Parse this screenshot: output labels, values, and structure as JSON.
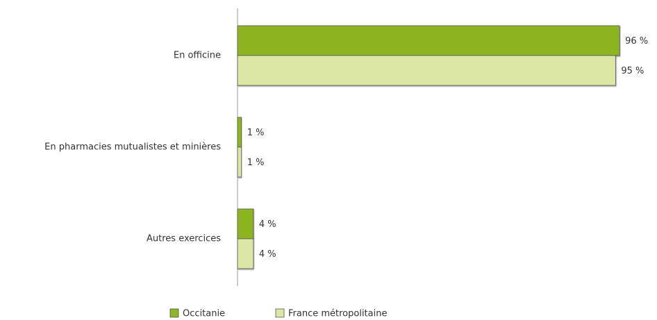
{
  "chart_data": {
    "type": "bar",
    "orientation": "horizontal",
    "categories": [
      "En officine",
      "En pharmacies mutualistes et minières",
      "Autres exercices"
    ],
    "series": [
      {
        "name": "Occitanie",
        "color": "#8db524",
        "values": [
          96,
          1,
          4
        ],
        "value_labels": [
          "96 %",
          "1 %",
          "4 %"
        ]
      },
      {
        "name": "France métropolitaine",
        "color": "#dce7a6",
        "values": [
          95,
          1,
          4
        ],
        "value_labels": [
          "95 %",
          "1 %",
          "4 %"
        ]
      }
    ],
    "xlim": [
      0,
      100
    ],
    "legend": "bottom"
  }
}
